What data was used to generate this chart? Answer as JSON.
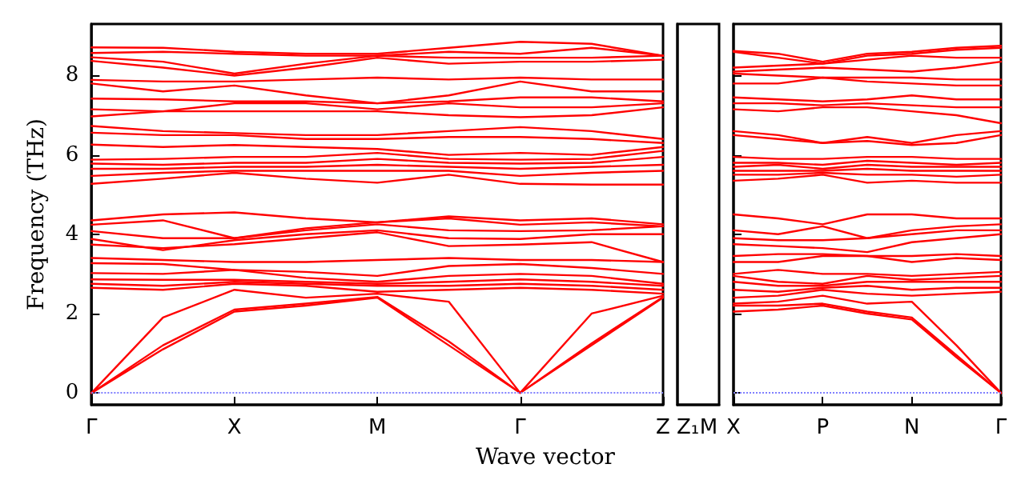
{
  "chart_data": [
    {
      "type": "line",
      "xlabel": "Wave vector",
      "ylabel": "Frequency (THz)",
      "categories": [
        "Γ",
        null,
        "X",
        null,
        "M",
        null,
        "Γ",
        null,
        "Z"
      ],
      "ylim": [
        -0.3,
        9.3
      ],
      "yticks": [
        0,
        2,
        4,
        6,
        8
      ],
      "grid": false,
      "marker": "none",
      "line_style": "solid",
      "ref_lines": [
        {
          "axis": "y",
          "value": 0,
          "color": "#8080ff",
          "line_style": "dotted"
        }
      ],
      "series": [
        {
          "color": "#ff0000",
          "values": [
            0,
            1.1,
            2.05,
            2.2,
            2.4,
            1.2,
            0,
            1.2,
            2.4
          ]
        },
        {
          "color": "#ff0000",
          "values": [
            0,
            1.2,
            2.1,
            2.25,
            2.42,
            1.3,
            0,
            1.25,
            2.42
          ]
        },
        {
          "color": "#ff0000",
          "values": [
            0,
            1.9,
            2.6,
            2.4,
            2.5,
            2.3,
            0,
            2.0,
            2.45
          ]
        },
        {
          "color": "#ff0000",
          "values": [
            2.65,
            2.6,
            2.75,
            2.7,
            2.55,
            2.6,
            2.65,
            2.6,
            2.5
          ]
        },
        {
          "color": "#ff0000",
          "values": [
            2.75,
            2.7,
            2.8,
            2.75,
            2.7,
            2.7,
            2.75,
            2.7,
            2.6
          ]
        },
        {
          "color": "#ff0000",
          "values": [
            2.86,
            2.85,
            2.85,
            2.8,
            2.75,
            2.8,
            2.86,
            2.8,
            2.7
          ]
        },
        {
          "color": "#ff0000",
          "values": [
            3.02,
            3.0,
            3.1,
            2.9,
            2.8,
            2.95,
            3.0,
            2.95,
            2.75
          ]
        },
        {
          "color": "#ff0000",
          "values": [
            3.27,
            3.25,
            3.1,
            3.05,
            2.95,
            3.2,
            3.25,
            3.15,
            3.0
          ]
        },
        {
          "color": "#ff0000",
          "values": [
            3.4,
            3.35,
            3.3,
            3.3,
            3.35,
            3.4,
            3.35,
            3.35,
            3.3
          ]
        },
        {
          "color": "#ff0000",
          "values": [
            3.74,
            3.65,
            3.75,
            3.9,
            4.05,
            3.7,
            3.74,
            3.8,
            3.3
          ]
        },
        {
          "color": "#ff0000",
          "values": [
            3.88,
            3.6,
            3.85,
            4.0,
            4.1,
            3.9,
            3.88,
            4.0,
            4.0
          ]
        },
        {
          "color": "#ff0000",
          "values": [
            4.08,
            3.9,
            3.9,
            4.1,
            4.25,
            4.1,
            4.08,
            4.1,
            4.2
          ]
        },
        {
          "color": "#ff0000",
          "values": [
            4.24,
            4.35,
            3.9,
            4.15,
            4.3,
            4.4,
            4.24,
            4.3,
            4.2
          ]
        },
        {
          "color": "#ff0000",
          "values": [
            4.35,
            4.5,
            4.55,
            4.4,
            4.3,
            4.45,
            4.35,
            4.4,
            4.25
          ]
        },
        {
          "color": "#ff0000",
          "values": [
            5.27,
            5.4,
            5.55,
            5.4,
            5.3,
            5.5,
            5.27,
            5.25,
            5.25
          ]
        },
        {
          "color": "#ff0000",
          "values": [
            5.47,
            5.55,
            5.6,
            5.6,
            5.6,
            5.6,
            5.47,
            5.55,
            5.6
          ]
        },
        {
          "color": "#ff0000",
          "values": [
            5.65,
            5.65,
            5.7,
            5.7,
            5.75,
            5.7,
            5.65,
            5.7,
            5.75
          ]
        },
        {
          "color": "#ff0000",
          "values": [
            5.78,
            5.75,
            5.8,
            5.8,
            5.9,
            5.8,
            5.78,
            5.8,
            5.95
          ]
        },
        {
          "color": "#ff0000",
          "values": [
            5.88,
            5.9,
            5.95,
            5.95,
            6.05,
            5.9,
            5.88,
            5.9,
            6.1
          ]
        },
        {
          "color": "#ff0000",
          "values": [
            6.26,
            6.2,
            6.25,
            6.2,
            6.15,
            6.0,
            6.05,
            6.0,
            6.2
          ]
        },
        {
          "color": "#ff0000",
          "values": [
            6.56,
            6.5,
            6.5,
            6.4,
            6.4,
            6.45,
            6.45,
            6.4,
            6.3
          ]
        },
        {
          "color": "#ff0000",
          "values": [
            6.73,
            6.6,
            6.55,
            6.5,
            6.5,
            6.6,
            6.7,
            6.6,
            6.4
          ]
        },
        {
          "color": "#ff0000",
          "values": [
            6.97,
            7.1,
            7.1,
            7.1,
            7.1,
            7.0,
            6.95,
            7.0,
            7.2
          ]
        },
        {
          "color": "#ff0000",
          "values": [
            7.15,
            7.1,
            7.3,
            7.3,
            7.15,
            7.3,
            7.2,
            7.2,
            7.3
          ]
        },
        {
          "color": "#ff0000",
          "values": [
            7.42,
            7.4,
            7.35,
            7.35,
            7.3,
            7.35,
            7.45,
            7.45,
            7.35
          ]
        },
        {
          "color": "#ff0000",
          "values": [
            7.8,
            7.6,
            7.75,
            7.5,
            7.3,
            7.5,
            7.85,
            7.6,
            7.6
          ]
        },
        {
          "color": "#ff0000",
          "values": [
            7.89,
            7.85,
            7.85,
            7.9,
            7.95,
            7.9,
            7.95,
            7.9,
            7.9
          ]
        },
        {
          "color": "#ff0000",
          "values": [
            8.37,
            8.2,
            8.0,
            8.2,
            8.45,
            8.3,
            8.35,
            8.35,
            8.4
          ]
        },
        {
          "color": "#ff0000",
          "values": [
            8.46,
            8.35,
            8.05,
            8.3,
            8.5,
            8.45,
            8.45,
            8.45,
            8.5
          ]
        },
        {
          "color": "#ff0000",
          "values": [
            8.57,
            8.6,
            8.55,
            8.5,
            8.5,
            8.6,
            8.55,
            8.7,
            8.5
          ]
        },
        {
          "color": "#ff0000",
          "values": [
            8.71,
            8.7,
            8.6,
            8.55,
            8.55,
            8.7,
            8.85,
            8.8,
            8.5
          ]
        }
      ]
    },
    {
      "type": "line",
      "categories": [
        "Z₁",
        "M"
      ],
      "ylim": [
        -0.3,
        9.3
      ],
      "tick_labels": "x"
    },
    {
      "type": "line",
      "categories": [
        "X",
        null,
        "P",
        null,
        "N",
        null,
        "Γ"
      ],
      "ylim": [
        -0.3,
        9.3
      ],
      "yticks": [
        0,
        2,
        4,
        6,
        8
      ],
      "tick_labels": "x",
      "grid": false,
      "marker": "none",
      "line_style": "solid",
      "ref_lines": [
        {
          "axis": "y",
          "value": 0,
          "color": "#8080ff",
          "line_style": "dotted"
        }
      ],
      "series": [
        {
          "color": "#ff0000",
          "values": [
            2.05,
            2.1,
            2.2,
            2.0,
            1.85,
            0.9,
            0
          ]
        },
        {
          "color": "#ff0000",
          "values": [
            2.2,
            2.2,
            2.25,
            2.05,
            1.9,
            0.95,
            0
          ]
        },
        {
          "color": "#ff0000",
          "values": [
            2.25,
            2.3,
            2.45,
            2.25,
            2.3,
            1.2,
            0
          ]
        },
        {
          "color": "#ff0000",
          "values": [
            2.4,
            2.45,
            2.6,
            2.5,
            2.45,
            2.5,
            2.55
          ]
        },
        {
          "color": "#ff0000",
          "values": [
            2.6,
            2.55,
            2.65,
            2.7,
            2.6,
            2.65,
            2.65
          ]
        },
        {
          "color": "#ff0000",
          "values": [
            2.8,
            2.7,
            2.7,
            2.8,
            2.8,
            2.8,
            2.8
          ]
        },
        {
          "color": "#ff0000",
          "values": [
            2.95,
            2.8,
            2.75,
            2.95,
            2.85,
            2.9,
            2.95
          ]
        },
        {
          "color": "#ff0000",
          "values": [
            3.0,
            3.1,
            3.0,
            3.0,
            2.95,
            3.0,
            3.05
          ]
        },
        {
          "color": "#ff0000",
          "values": [
            3.3,
            3.3,
            3.45,
            3.45,
            3.3,
            3.4,
            3.35
          ]
        },
        {
          "color": "#ff0000",
          "values": [
            3.45,
            3.5,
            3.5,
            3.45,
            3.45,
            3.5,
            3.45
          ]
        },
        {
          "color": "#ff0000",
          "values": [
            3.75,
            3.7,
            3.65,
            3.55,
            3.8,
            3.9,
            4.0
          ]
        },
        {
          "color": "#ff0000",
          "values": [
            3.9,
            3.85,
            3.85,
            3.9,
            4.0,
            4.1,
            4.1
          ]
        },
        {
          "color": "#ff0000",
          "values": [
            4.1,
            4.0,
            4.2,
            3.9,
            4.1,
            4.2,
            4.25
          ]
        },
        {
          "color": "#ff0000",
          "values": [
            4.5,
            4.4,
            4.25,
            4.5,
            4.5,
            4.4,
            4.4
          ]
        },
        {
          "color": "#ff0000",
          "values": [
            5.35,
            5.4,
            5.5,
            5.3,
            5.35,
            5.3,
            5.3
          ]
        },
        {
          "color": "#ff0000",
          "values": [
            5.5,
            5.5,
            5.55,
            5.5,
            5.5,
            5.45,
            5.5
          ]
        },
        {
          "color": "#ff0000",
          "values": [
            5.6,
            5.6,
            5.6,
            5.65,
            5.6,
            5.6,
            5.6
          ]
        },
        {
          "color": "#ff0000",
          "values": [
            5.7,
            5.75,
            5.65,
            5.75,
            5.7,
            5.7,
            5.7
          ]
        },
        {
          "color": "#ff0000",
          "values": [
            5.8,
            5.8,
            5.75,
            5.85,
            5.8,
            5.75,
            5.8
          ]
        },
        {
          "color": "#ff0000",
          "values": [
            5.95,
            5.9,
            5.9,
            5.95,
            5.95,
            5.9,
            5.9
          ]
        },
        {
          "color": "#ff0000",
          "values": [
            6.5,
            6.4,
            6.3,
            6.35,
            6.25,
            6.3,
            6.5
          ]
        },
        {
          "color": "#ff0000",
          "values": [
            6.6,
            6.5,
            6.3,
            6.45,
            6.3,
            6.5,
            6.6
          ]
        },
        {
          "color": "#ff0000",
          "values": [
            7.15,
            7.1,
            7.2,
            7.2,
            7.1,
            7.0,
            6.8
          ]
        },
        {
          "color": "#ff0000",
          "values": [
            7.3,
            7.3,
            7.25,
            7.3,
            7.25,
            7.2,
            7.2
          ]
        },
        {
          "color": "#ff0000",
          "values": [
            7.45,
            7.4,
            7.35,
            7.4,
            7.5,
            7.4,
            7.4
          ]
        },
        {
          "color": "#ff0000",
          "values": [
            7.8,
            7.8,
            7.95,
            7.85,
            7.8,
            7.75,
            7.75
          ]
        },
        {
          "color": "#ff0000",
          "values": [
            8.05,
            8.0,
            7.95,
            7.95,
            7.95,
            7.9,
            7.9
          ]
        },
        {
          "color": "#ff0000",
          "values": [
            8.1,
            8.15,
            8.2,
            8.15,
            8.1,
            8.2,
            8.35
          ]
        },
        {
          "color": "#ff0000",
          "values": [
            8.2,
            8.25,
            8.3,
            8.4,
            8.5,
            8.45,
            8.45
          ]
        },
        {
          "color": "#ff0000",
          "values": [
            8.6,
            8.45,
            8.3,
            8.5,
            8.55,
            8.65,
            8.7
          ]
        },
        {
          "color": "#ff0000",
          "values": [
            8.62,
            8.55,
            8.35,
            8.55,
            8.6,
            8.7,
            8.75
          ]
        }
      ]
    }
  ]
}
